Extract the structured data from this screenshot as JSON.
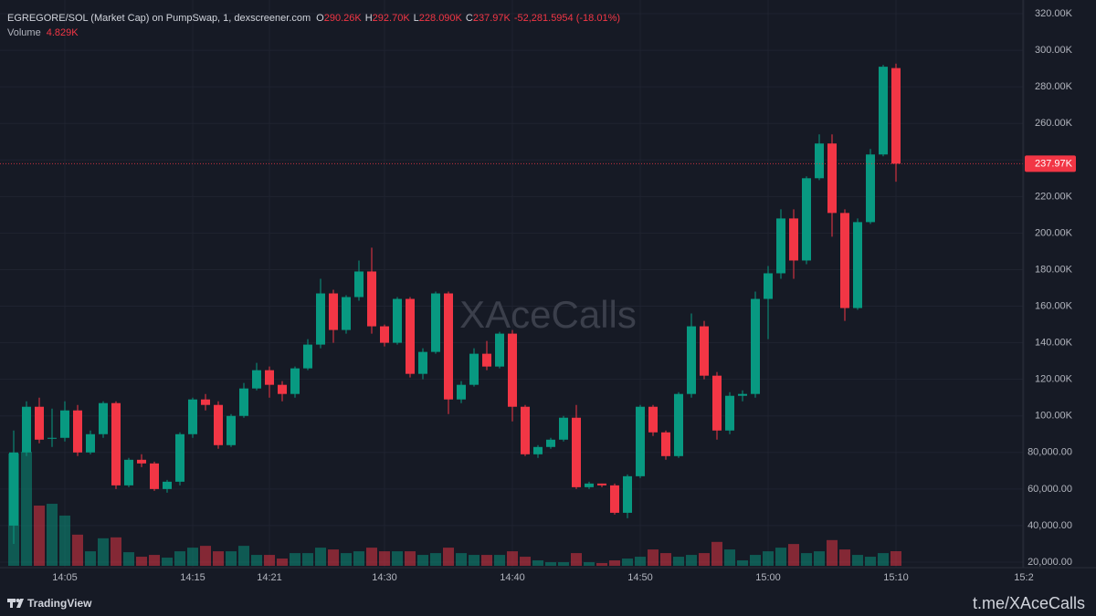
{
  "chart_data": {
    "type": "candlestick",
    "title": "EGREGORE/SOL (Market Cap) on PumpSwap, 1, dexscreener.com",
    "legend_fields": [
      {
        "key": "O",
        "text": "290.26K"
      },
      {
        "key": "H",
        "text": "292.70K"
      },
      {
        "key": "L",
        "text": "228.090K"
      },
      {
        "key": "C",
        "text": "237.97K"
      }
    ],
    "change_text": "-52,281.5954 (-18.01%)",
    "volume_title": "Volume",
    "volume_text": "4.829K",
    "watermark": "XAceCalls",
    "brand": "TradingView",
    "footer_link": "t.me/XAceCalls",
    "up_color": "#089981",
    "down_color": "#f23645",
    "grid": true,
    "categories": [
      null,
      null,
      null,
      null,
      "14:05",
      null,
      null,
      null,
      null,
      null,
      null,
      null,
      null,
      null,
      "14:15",
      null,
      null,
      null,
      null,
      null,
      "14:21",
      null,
      null,
      null,
      null,
      null,
      null,
      null,
      null,
      "14:30",
      null,
      null,
      null,
      null,
      null,
      null,
      null,
      null,
      null,
      "14:40",
      null,
      null,
      null,
      null,
      null,
      null,
      null,
      null,
      null,
      "14:50",
      null,
      null,
      null,
      null,
      null,
      null,
      null,
      null,
      null,
      "15:00",
      null,
      null,
      null,
      null,
      null,
      null,
      null,
      null,
      null,
      "15:10",
      null,
      null,
      null,
      null,
      null,
      null,
      null,
      null,
      null,
      "15:2"
    ],
    "open": [
      40000,
      80000,
      105000,
      88000,
      88000,
      103000,
      80000,
      90000,
      107000,
      62000,
      76000,
      74000,
      60000,
      64000,
      90000,
      109000,
      106000,
      84000,
      100000,
      115000,
      125000,
      117000,
      112000,
      126000,
      139000,
      167000,
      147000,
      165000,
      179000,
      149000,
      140000,
      164000,
      123000,
      135000,
      167000,
      109000,
      117000,
      134000,
      127000,
      145000,
      105000,
      79000,
      83000,
      87000,
      99000,
      61000,
      63000,
      62000,
      47000,
      67000,
      105000,
      91000,
      78000,
      112000,
      149000,
      122000,
      92000,
      111000,
      112000,
      164000,
      178000,
      208000,
      185000,
      230000,
      249000,
      211000,
      159000,
      206000,
      243000,
      290260,
      null,
      null,
      null,
      null,
      null,
      null,
      null,
      null,
      null,
      null
    ],
    "high": [
      92000,
      108000,
      110000,
      104000,
      108000,
      106000,
      92000,
      108000,
      108000,
      77000,
      79000,
      75000,
      65000,
      91000,
      110000,
      112000,
      108000,
      101000,
      118000,
      129000,
      127000,
      119000,
      127000,
      142000,
      175000,
      169000,
      166000,
      185000,
      192000,
      150000,
      165000,
      165000,
      137000,
      168000,
      168000,
      119000,
      137000,
      141000,
      146000,
      147000,
      106000,
      84000,
      88000,
      100000,
      106000,
      64000,
      63000,
      63000,
      68000,
      106000,
      106000,
      92000,
      113000,
      156000,
      152000,
      124000,
      113000,
      114000,
      168000,
      182000,
      213000,
      213000,
      231000,
      254000,
      254000,
      213000,
      208000,
      246000,
      292000,
      292700,
      null,
      null,
      null,
      null,
      null,
      null,
      null,
      null,
      null,
      null
    ],
    "low": [
      30000,
      78000,
      85000,
      83000,
      86000,
      78000,
      79000,
      88000,
      60000,
      61000,
      72000,
      59000,
      58000,
      62000,
      88000,
      103000,
      82000,
      83000,
      99000,
      114000,
      110000,
      108000,
      110000,
      125000,
      137000,
      140000,
      145000,
      163000,
      145000,
      138000,
      139000,
      121000,
      120000,
      134000,
      101000,
      107000,
      116000,
      125000,
      126000,
      97000,
      78000,
      77000,
      82000,
      86000,
      60000,
      60000,
      61000,
      46000,
      44000,
      66000,
      89000,
      76000,
      77000,
      110000,
      120000,
      87000,
      90000,
      108000,
      110000,
      142000,
      175000,
      175000,
      183000,
      229000,
      198000,
      152000,
      158000,
      205000,
      242000,
      228090,
      null,
      null,
      null,
      null,
      null,
      null,
      null,
      null,
      null,
      null
    ],
    "close": [
      80000,
      105000,
      87000,
      88000,
      103000,
      80000,
      90000,
      107000,
      62000,
      76000,
      74000,
      60000,
      64000,
      90000,
      109000,
      106000,
      84000,
      100000,
      115000,
      125000,
      117000,
      112000,
      126000,
      139000,
      167000,
      147000,
      165000,
      179000,
      149000,
      140000,
      164000,
      123000,
      135000,
      167000,
      109000,
      117000,
      134000,
      127000,
      145000,
      105000,
      79000,
      83000,
      87000,
      99000,
      61000,
      63000,
      62000,
      47000,
      67000,
      105000,
      91000,
      78000,
      112000,
      149000,
      122000,
      92000,
      111000,
      112000,
      164000,
      178000,
      208000,
      185000,
      230000,
      249000,
      211000,
      159000,
      206000,
      243000,
      291000,
      237970,
      null,
      null,
      null,
      null,
      null,
      null,
      null,
      null,
      null,
      null
    ],
    "volume": [
      37100,
      37700,
      19900,
      20500,
      16600,
      10300,
      4800,
      9100,
      9400,
      4500,
      3000,
      3600,
      2700,
      4800,
      6000,
      6600,
      4800,
      4800,
      6600,
      3600,
      3600,
      2400,
      4200,
      4200,
      6000,
      5400,
      4200,
      4800,
      6000,
      4800,
      4800,
      4800,
      3600,
      4200,
      6000,
      4200,
      3600,
      3600,
      3600,
      4800,
      3000,
      1800,
      1200,
      1200,
      4200,
      1200,
      900,
      1800,
      2400,
      3000,
      5400,
      4200,
      3000,
      3600,
      4200,
      7900,
      5400,
      1800,
      3600,
      4800,
      6000,
      7200,
      4200,
      4800,
      8500,
      5400,
      3600,
      3000,
      4200,
      4829,
      null,
      null,
      null,
      null,
      null,
      null,
      null,
      null,
      null,
      null
    ],
    "ylim": [
      17000,
      327500
    ],
    "yticks": [
      {
        "value": 20000,
        "label": "20,000.00"
      },
      {
        "value": 40000,
        "label": "40,000.00"
      },
      {
        "value": 60000,
        "label": "60,000.00"
      },
      {
        "value": 80000,
        "label": "80,000.00"
      },
      {
        "value": 100000,
        "label": "100.00K"
      },
      {
        "value": 120000,
        "label": "120.00K"
      },
      {
        "value": 140000,
        "label": "140.00K"
      },
      {
        "value": 160000,
        "label": "160.00K"
      },
      {
        "value": 180000,
        "label": "180.00K"
      },
      {
        "value": 200000,
        "label": "200.00K"
      },
      {
        "value": 220000,
        "label": "220.00K"
      },
      {
        "value": 240000,
        "label": "240.00K"
      },
      {
        "value": 260000,
        "label": "260.00K"
      },
      {
        "value": 280000,
        "label": "280.00K"
      },
      {
        "value": 300000,
        "label": "300.00K"
      },
      {
        "value": 320000,
        "label": "320.00K"
      }
    ],
    "last_price": {
      "value": 237970,
      "label": "237.97K"
    }
  }
}
